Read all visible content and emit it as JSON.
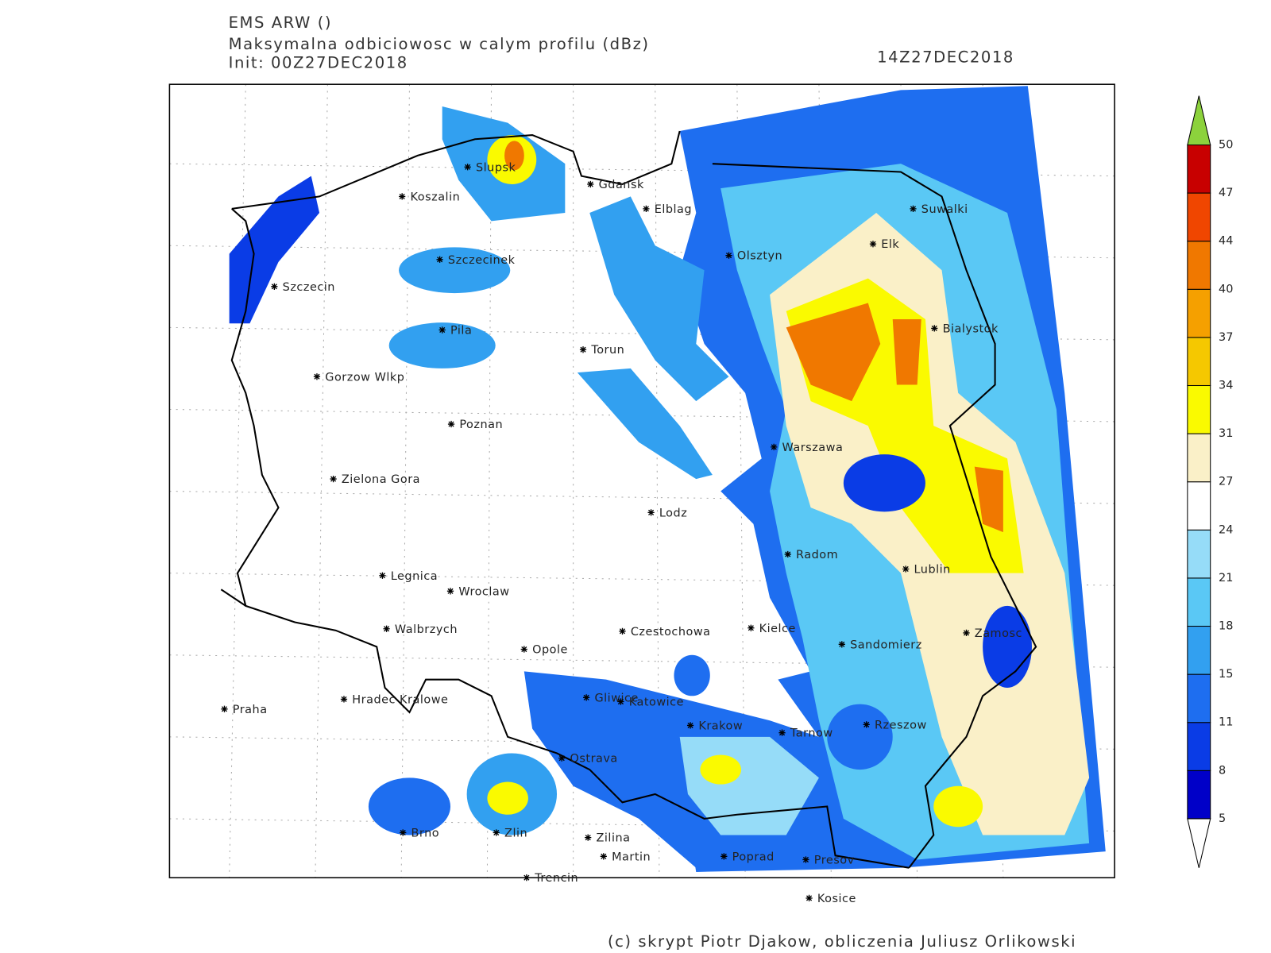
{
  "header": {
    "model": "EMS ARW ()",
    "field": "Maksymalna odbiciowosc w calym profilu (dBz)",
    "init": "Init: 00Z27DEC2018",
    "valid": "14Z27DEC2018"
  },
  "cities": [
    "Slupsk",
    "Koszalin",
    "Gdansk",
    "Elblag",
    "Szczecinek",
    "Szczecin",
    "Olsztyn",
    "Elk",
    "Suwalki",
    "Pila",
    "Torun",
    "Bialystok",
    "Gorzow Wlkp",
    "Poznan",
    "Warszawa",
    "Zielona Gora",
    "Lodz",
    "Radom",
    "Lublin",
    "Legnica",
    "Wroclaw",
    "Walbrzych",
    "Czestochowa",
    "Kielce",
    "Zamosc",
    "Sandomierz",
    "Opole",
    "Praha",
    "Hradec Kralowe",
    "Gliwice",
    "Katowice",
    "Krakow",
    "Tarnow",
    "Rzeszow",
    "Ostrava",
    "Brno",
    "Zlin",
    "Zilina",
    "Martin",
    "Poprad",
    "Presov",
    "Trencin",
    "Kosice"
  ],
  "legend": {
    "ticks": [
      5,
      8,
      11,
      15,
      18,
      21,
      24,
      27,
      31,
      34,
      37,
      40,
      44,
      47,
      50
    ],
    "colors": [
      "#0000c8",
      "#0a3ce6",
      "#1e6ef0",
      "#32a0f0",
      "#5ac8f5",
      "#96dcf8",
      "#ffffff",
      "#faf0c8",
      "#fafa00",
      "#f5c800",
      "#f5a000",
      "#f07800",
      "#f04600",
      "#c80000"
    ],
    "above_color": "#8cd23c",
    "below_color": "#ffffff"
  },
  "footer": "(c) skrypt Piotr Djakow, obliczenia Juliusz Orlikowski"
}
